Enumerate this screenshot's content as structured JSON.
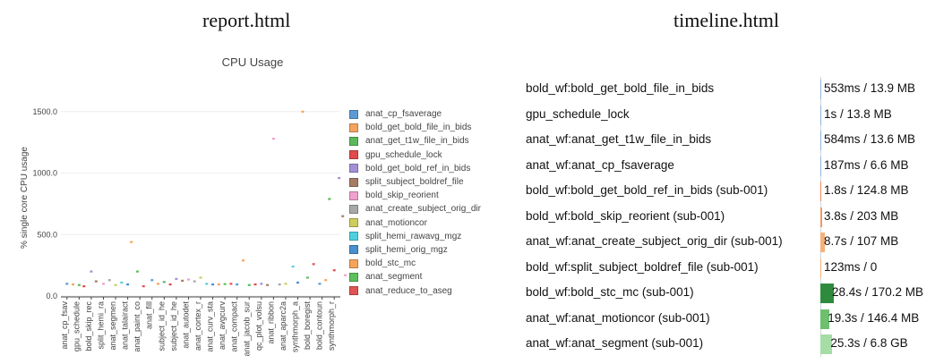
{
  "headers": {
    "left": "report.html",
    "right": "timeline.html"
  },
  "chart_data": {
    "type": "scatter",
    "title": "CPU Usage",
    "ylabel": "% single core CPU usage",
    "xlabel": "",
    "ylim": [
      0,
      1600
    ],
    "yticks": [
      "0.0",
      "500.0",
      "1000.0",
      "1500.0"
    ],
    "grid": true,
    "legend_position": "right",
    "categories": [
      "anat_cp_fsav",
      "gpu_schedule",
      "bold_skip_rec",
      "split_hemi_ra",
      "anat_segmen",
      "anat_talairact",
      "anat_paint_co",
      "anat_fill",
      "subject_id_he",
      "subject_id_he",
      "anat_autodet",
      "anat_cortex_r",
      "anat_curv_sta",
      "anat_avgcurv",
      "anat_compact",
      "anat_jacob_sur",
      "qc_plot_volsu",
      "anat_ribbon",
      "anat_aparc2a",
      "synthmorph_a",
      "bold_boregist",
      "bold_contoun",
      "synthmorph_r"
    ],
    "points": [
      {
        "x": 0,
        "y": 100
      },
      {
        "x": 0.5,
        "y": 95
      },
      {
        "x": 1,
        "y": 90
      },
      {
        "x": 1.4,
        "y": 80
      },
      {
        "x": 2,
        "y": 200
      },
      {
        "x": 2.4,
        "y": 120
      },
      {
        "x": 3,
        "y": 100
      },
      {
        "x": 3.5,
        "y": 130
      },
      {
        "x": 4,
        "y": 90
      },
      {
        "x": 4.5,
        "y": 110
      },
      {
        "x": 5,
        "y": 95
      },
      {
        "x": 5.3,
        "y": 440
      },
      {
        "x": 5.8,
        "y": 200
      },
      {
        "x": 6.3,
        "y": 80
      },
      {
        "x": 7,
        "y": 130
      },
      {
        "x": 7.5,
        "y": 100
      },
      {
        "x": 8,
        "y": 115
      },
      {
        "x": 8.5,
        "y": 95
      },
      {
        "x": 9,
        "y": 140
      },
      {
        "x": 9.5,
        "y": 125
      },
      {
        "x": 10,
        "y": 135
      },
      {
        "x": 10.5,
        "y": 120
      },
      {
        "x": 11,
        "y": 150
      },
      {
        "x": 11.5,
        "y": 100
      },
      {
        "x": 12,
        "y": 95
      },
      {
        "x": 12.5,
        "y": 95
      },
      {
        "x": 13,
        "y": 98
      },
      {
        "x": 13.5,
        "y": 100
      },
      {
        "x": 14,
        "y": 95
      },
      {
        "x": 14.5,
        "y": 290
      },
      {
        "x": 15,
        "y": 90
      },
      {
        "x": 15.5,
        "y": 95
      },
      {
        "x": 16,
        "y": 100
      },
      {
        "x": 16.5,
        "y": 90
      },
      {
        "x": 17,
        "y": 1280
      },
      {
        "x": 17.5,
        "y": 95
      },
      {
        "x": 18,
        "y": 100
      },
      {
        "x": 18.6,
        "y": 240
      },
      {
        "x": 19,
        "y": 110
      },
      {
        "x": 19.4,
        "y": 1500
      },
      {
        "x": 19.8,
        "y": 150
      },
      {
        "x": 20.3,
        "y": 260
      },
      {
        "x": 20.8,
        "y": 100
      },
      {
        "x": 21.3,
        "y": 130
      },
      {
        "x": 21.6,
        "y": 790
      },
      {
        "x": 22,
        "y": 210
      },
      {
        "x": 22.4,
        "y": 960
      },
      {
        "x": 22.7,
        "y": 650
      },
      {
        "x": 22.9,
        "y": 170
      }
    ],
    "legend": [
      {
        "name": "anat_cp_fsaverage",
        "color": "#5b9bd5"
      },
      {
        "name": "bold_get_bold_file_in_bids",
        "color": "#f4a460"
      },
      {
        "name": "anat_get_t1w_file_in_bids",
        "color": "#5cb85c"
      },
      {
        "name": "gpu_schedule_lock",
        "color": "#e04b4b"
      },
      {
        "name": "bold_get_bold_ref_in_bids",
        "color": "#a58fd6"
      },
      {
        "name": "split_subject_boldref_file",
        "color": "#a67c64"
      },
      {
        "name": "bold_skip_reorient",
        "color": "#f0a0cf"
      },
      {
        "name": "anat_create_subject_orig_dir",
        "color": "#a8a8a8"
      },
      {
        "name": "anat_motioncor",
        "color": "#cdcd5c"
      },
      {
        "name": "split_hemi_rawavg_mgz",
        "color": "#4fd0df"
      },
      {
        "name": "split_hemi_orig_mgz",
        "color": "#4a8fcf"
      },
      {
        "name": "bold_stc_mc",
        "color": "#f5a55a"
      },
      {
        "name": "anat_segment",
        "color": "#5cc05c"
      },
      {
        "name": "anat_reduce_to_aseg",
        "color": "#e05555"
      }
    ]
  },
  "timeline": {
    "rows": [
      {
        "label": "bold_wf:bold_get_bold_file_in_bids",
        "value": "553ms / 13.9 MB",
        "bar_fraction": 0.0,
        "color": "#8fb4e0"
      },
      {
        "label": "gpu_schedule_lock",
        "value": "1s / 13.8 MB",
        "bar_fraction": 0.0,
        "color": "#8fb4e0"
      },
      {
        "label": "anat_wf:anat_get_t1w_file_in_bids",
        "value": "584ms / 13.6 MB",
        "bar_fraction": 0.0,
        "color": "#8fb4e0"
      },
      {
        "label": "anat_wf:anat_cp_fsaverage",
        "value": "187ms / 6.6 MB",
        "bar_fraction": 0.0,
        "color": "#8fb4e0"
      },
      {
        "label": "bold_wf:bold_get_bold_ref_in_bids (sub-001)",
        "value": "1.8s / 124.8 MB",
        "bar_fraction": 0.07,
        "color": "#ef8a5a"
      },
      {
        "label": "bold_wf:bold_skip_reorient (sub-001)",
        "value": "3.8s / 203 MB",
        "bar_fraction": 0.15,
        "color": "#f09a60"
      },
      {
        "label": "anat_wf:anat_create_subject_orig_dir (sub-001)",
        "value": "8.7s / 107 MB",
        "bar_fraction": 0.34,
        "color": "#f6b07a"
      },
      {
        "label": "bold_wf:split_subject_boldref_file (sub-001)",
        "value": "123ms / 0",
        "bar_fraction": 0.0,
        "color": "#f6b07a"
      },
      {
        "label": "bold_wf:bold_stc_mc (sub-001)",
        "value": "28.4s / 170.2 MB",
        "bar_fraction": 1.0,
        "color": "#2e8b3e"
      },
      {
        "label": "anat_wf:anat_motioncor (sub-001)",
        "value": "19.3s / 146.4 MB",
        "bar_fraction": 0.68,
        "color": "#6ebf6e"
      },
      {
        "label": "anat_wf:anat_segment (sub-001)",
        "value": "25.3s / 6.8 GB",
        "bar_fraction": 0.89,
        "color": "#a6dca6"
      }
    ]
  }
}
